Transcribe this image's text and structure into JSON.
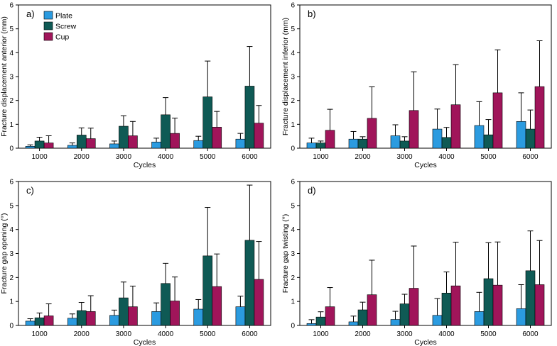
{
  "figure": {
    "legend": [
      {
        "name": "Plate",
        "color": "#2b9be0"
      },
      {
        "name": "Screw",
        "color": "#0f5a55"
      },
      {
        "name": "Cup",
        "color": "#a0155a"
      }
    ]
  },
  "chart_data": [
    {
      "type": "bar",
      "panel_label": "a)",
      "title": "",
      "xlabel": "Cycles",
      "ylabel": "Fracture displacement anterior (mm)",
      "ylim": [
        0,
        6
      ],
      "yticks": [
        "0",
        "1",
        "2",
        "3",
        "4",
        "5",
        "6"
      ],
      "categories": [
        "1000",
        "2000",
        "3000",
        "4000",
        "5000",
        "6000"
      ],
      "series": [
        {
          "name": "Plate",
          "values": [
            0.08,
            0.12,
            0.18,
            0.26,
            0.32,
            0.38
          ],
          "errors": [
            0.06,
            0.1,
            0.12,
            0.16,
            0.18,
            0.24
          ]
        },
        {
          "name": "Screw",
          "values": [
            0.3,
            0.55,
            0.92,
            1.4,
            2.15,
            2.6
          ],
          "errors": [
            0.16,
            0.3,
            0.44,
            0.72,
            1.5,
            1.66
          ]
        },
        {
          "name": "Cup",
          "values": [
            0.22,
            0.4,
            0.52,
            0.62,
            0.88,
            1.05
          ],
          "errors": [
            0.3,
            0.44,
            0.6,
            0.64,
            0.66,
            0.74
          ]
        }
      ],
      "legend_position": "top-left"
    },
    {
      "type": "bar",
      "panel_label": "b)",
      "title": "",
      "xlabel": "Cycles",
      "ylabel": "Fracture displacement inferior (mm)",
      "ylim": [
        0,
        6
      ],
      "yticks": [
        "0",
        "1",
        "2",
        "3",
        "4",
        "5",
        "6"
      ],
      "categories": [
        "1000",
        "2000",
        "3000",
        "4000",
        "5000",
        "6000"
      ],
      "series": [
        {
          "name": "Plate",
          "values": [
            0.22,
            0.38,
            0.52,
            0.8,
            0.95,
            1.12
          ],
          "errors": [
            0.2,
            0.32,
            0.46,
            0.84,
            1.0,
            1.2
          ]
        },
        {
          "name": "Screw",
          "values": [
            0.22,
            0.38,
            0.3,
            0.45,
            0.56,
            0.8
          ],
          "errors": [
            0.08,
            0.1,
            0.18,
            0.42,
            0.64,
            0.8
          ]
        },
        {
          "name": "Cup",
          "values": [
            0.75,
            1.25,
            1.58,
            1.82,
            2.32,
            2.58
          ],
          "errors": [
            0.88,
            1.32,
            1.62,
            1.68,
            1.8,
            1.92
          ]
        }
      ],
      "legend_position": "none"
    },
    {
      "type": "bar",
      "panel_label": "c)",
      "title": "",
      "xlabel": "Cycles",
      "ylabel": "Fracture gap opening (°)",
      "ylim": [
        0,
        6
      ],
      "yticks": [
        "0",
        "1",
        "2",
        "3",
        "4",
        "5",
        "6"
      ],
      "categories": [
        "1000",
        "2000",
        "3000",
        "4000",
        "5000",
        "6000"
      ],
      "series": [
        {
          "name": "Plate",
          "values": [
            0.18,
            0.3,
            0.42,
            0.58,
            0.68,
            0.78
          ],
          "errors": [
            0.1,
            0.18,
            0.22,
            0.36,
            0.4,
            0.44
          ]
        },
        {
          "name": "Screw",
          "values": [
            0.32,
            0.62,
            1.15,
            1.75,
            2.9,
            3.55
          ],
          "errors": [
            0.2,
            0.34,
            0.66,
            0.84,
            2.02,
            2.3
          ]
        },
        {
          "name": "Cup",
          "values": [
            0.4,
            0.58,
            0.78,
            1.02,
            1.62,
            1.92
          ],
          "errors": [
            0.5,
            0.66,
            0.86,
            1.0,
            1.36,
            1.58
          ]
        }
      ],
      "legend_position": "none"
    },
    {
      "type": "bar",
      "panel_label": "d)",
      "title": "",
      "xlabel": "Cycles",
      "ylabel": "Fracture gap twisting (°)",
      "ylim": [
        0,
        6
      ],
      "yticks": [
        "0",
        "1",
        "2",
        "3",
        "4",
        "5",
        "6"
      ],
      "categories": [
        "1000",
        "2000",
        "3000",
        "4000",
        "5000",
        "6000"
      ],
      "series": [
        {
          "name": "Plate",
          "values": [
            0.08,
            0.15,
            0.25,
            0.42,
            0.58,
            0.7
          ],
          "errors": [
            0.16,
            0.24,
            0.34,
            0.7,
            0.8,
            1.0
          ]
        },
        {
          "name": "Screw",
          "values": [
            0.35,
            0.65,
            0.9,
            1.35,
            1.95,
            2.28
          ],
          "errors": [
            0.22,
            0.32,
            0.4,
            0.88,
            1.5,
            1.66
          ]
        },
        {
          "name": "Cup",
          "values": [
            0.78,
            1.28,
            1.55,
            1.65,
            1.68,
            1.7
          ],
          "errors": [
            0.8,
            1.44,
            1.76,
            1.82,
            1.8,
            1.84
          ]
        }
      ],
      "legend_position": "none"
    }
  ]
}
